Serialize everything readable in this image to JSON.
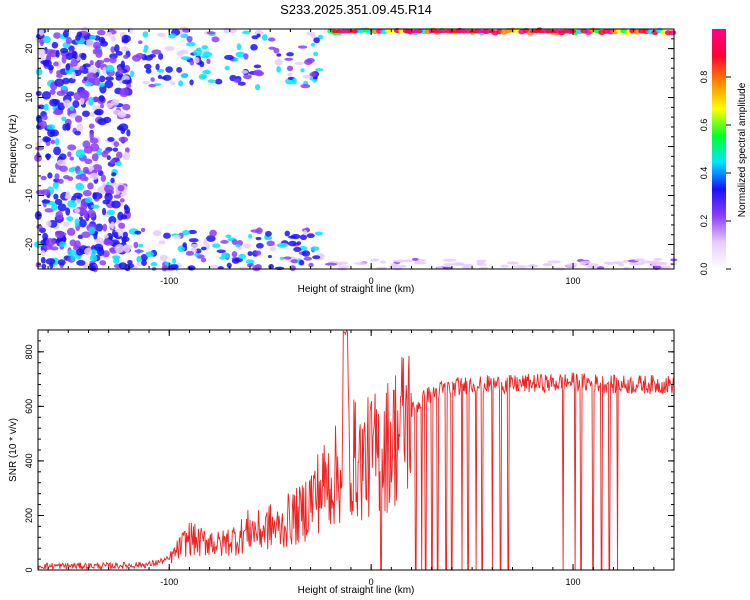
{
  "title": "S233.2025.351.09.45.R14",
  "chart_data": [
    {
      "type": "heatmap",
      "xlabel": "Height of straight line (km)",
      "ylabel": "Frequency (Hz)",
      "xlim": [
        -165,
        150
      ],
      "ylim": [
        -25,
        24
      ],
      "x_ticks": [
        -100,
        0,
        100
      ],
      "y_ticks": [
        -20,
        -10,
        0,
        10,
        20
      ],
      "colorbar": {
        "label": "Normalized spectral amplitude",
        "range": [
          0,
          1
        ],
        "ticks": [
          "0.0",
          "0.2",
          "0.4",
          "0.6",
          "0.8"
        ],
        "colors": [
          "#ffffff",
          "#e6ccff",
          "#8c3cff",
          "#1a10ff",
          "#00e5ff",
          "#00ff2a",
          "#ffff00",
          "#ff8800",
          "#ff0033",
          "#ff0088"
        ]
      },
      "features": [
        {
          "name_hint": "upper band near +24 Hz",
          "x_range": [
            -10,
            150
          ],
          "freq": 23.5,
          "amplitude": 0.95
        },
        {
          "name_hint": "scatter region",
          "x_range": [
            -165,
            -120
          ],
          "freq_range": [
            -25,
            24
          ],
          "amplitude": 0.3
        },
        {
          "name_hint": "lower cluster",
          "x_range": [
            -100,
            -25
          ],
          "freq_range": [
            -25,
            -17
          ],
          "amplitude": 0.35
        }
      ]
    },
    {
      "type": "line",
      "xlabel": "Height of straight line (km)",
      "ylabel": "SNR (10 * v/v)",
      "xlim": [
        -165,
        150
      ],
      "ylim": [
        0,
        880
      ],
      "x_ticks": [
        -100,
        0,
        100
      ],
      "y_ticks": [
        0,
        200,
        400,
        600,
        800
      ],
      "color": "#ee2222",
      "series": [
        {
          "x": [
            -165,
            -150,
            -130,
            -110,
            -100,
            -95,
            -90,
            -85,
            -80,
            -75,
            -70,
            -65,
            -60,
            -55,
            -50,
            -45,
            -40,
            -35,
            -30,
            -25,
            -20,
            -15,
            -12,
            -10,
            -5,
            0,
            5,
            10,
            15,
            20,
            25,
            30,
            40,
            50,
            60,
            70,
            80,
            90,
            100,
            110,
            120,
            130,
            140,
            150
          ],
          "y": [
            15,
            15,
            15,
            20,
            40,
            80,
            120,
            100,
            110,
            90,
            110,
            120,
            150,
            140,
            160,
            150,
            190,
            200,
            260,
            300,
            330,
            360,
            500,
            420,
            390,
            420,
            440,
            470,
            530,
            580,
            620,
            650,
            670,
            680,
            680,
            680,
            685,
            685,
            690,
            685,
            680,
            680,
            680,
            680
          ]
        }
      ],
      "dropouts_x": [
        5,
        22,
        25,
        27,
        30,
        33,
        37,
        40,
        45,
        48,
        52,
        55,
        60,
        64,
        68,
        95,
        101,
        104,
        110,
        114,
        118,
        122
      ]
    }
  ]
}
